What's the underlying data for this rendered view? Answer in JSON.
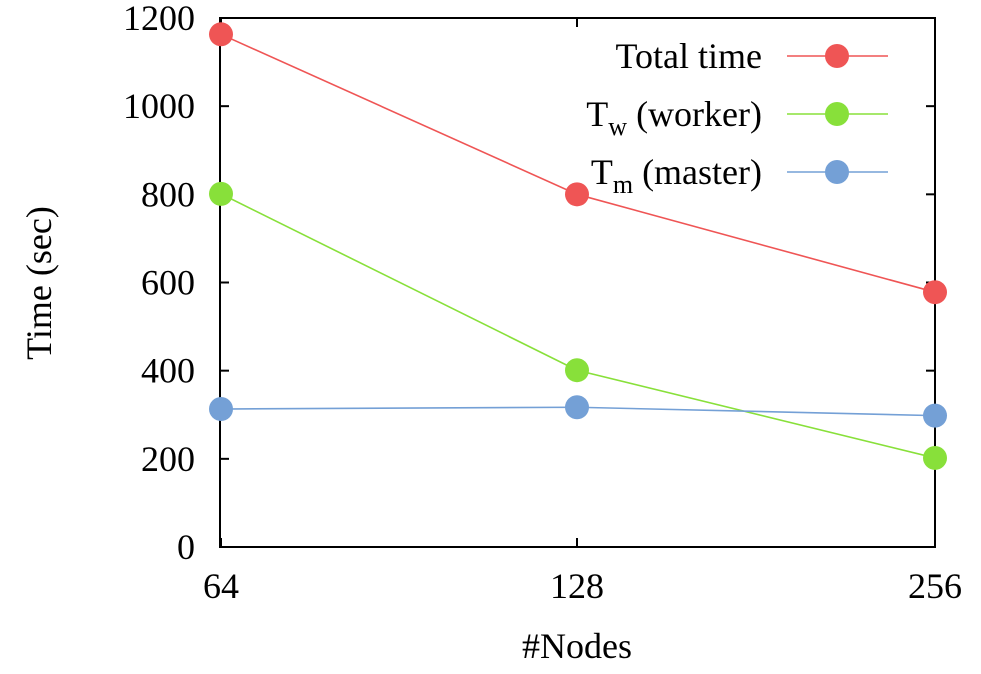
{
  "chart_data": {
    "type": "line",
    "xlabel": "#Nodes",
    "ylabel": "Time (sec)",
    "categories": [
      "64",
      "128",
      "256"
    ],
    "ylim": [
      0,
      1200
    ],
    "yticks": [
      "0",
      "200",
      "400",
      "600",
      "800",
      "1000",
      "1200"
    ],
    "grid": false,
    "legend_position": "top-right",
    "series": [
      {
        "key": "total",
        "name": "Total time",
        "name_main": "Total time",
        "name_sub": "",
        "name_rest": "",
        "color": "#ef5555",
        "values": [
          1163,
          800,
          578
        ]
      },
      {
        "key": "worker",
        "name": "Tw (worker)",
        "name_main": "T",
        "name_sub": "w",
        "name_rest": " (worker)",
        "color": "#88e03a",
        "values": [
          801,
          401,
          202
        ]
      },
      {
        "key": "master",
        "name": "Tm (master)",
        "name_main": "T",
        "name_sub": "m",
        "name_rest": " (master)",
        "color": "#74a0d6",
        "values": [
          313,
          317,
          298
        ]
      }
    ]
  }
}
